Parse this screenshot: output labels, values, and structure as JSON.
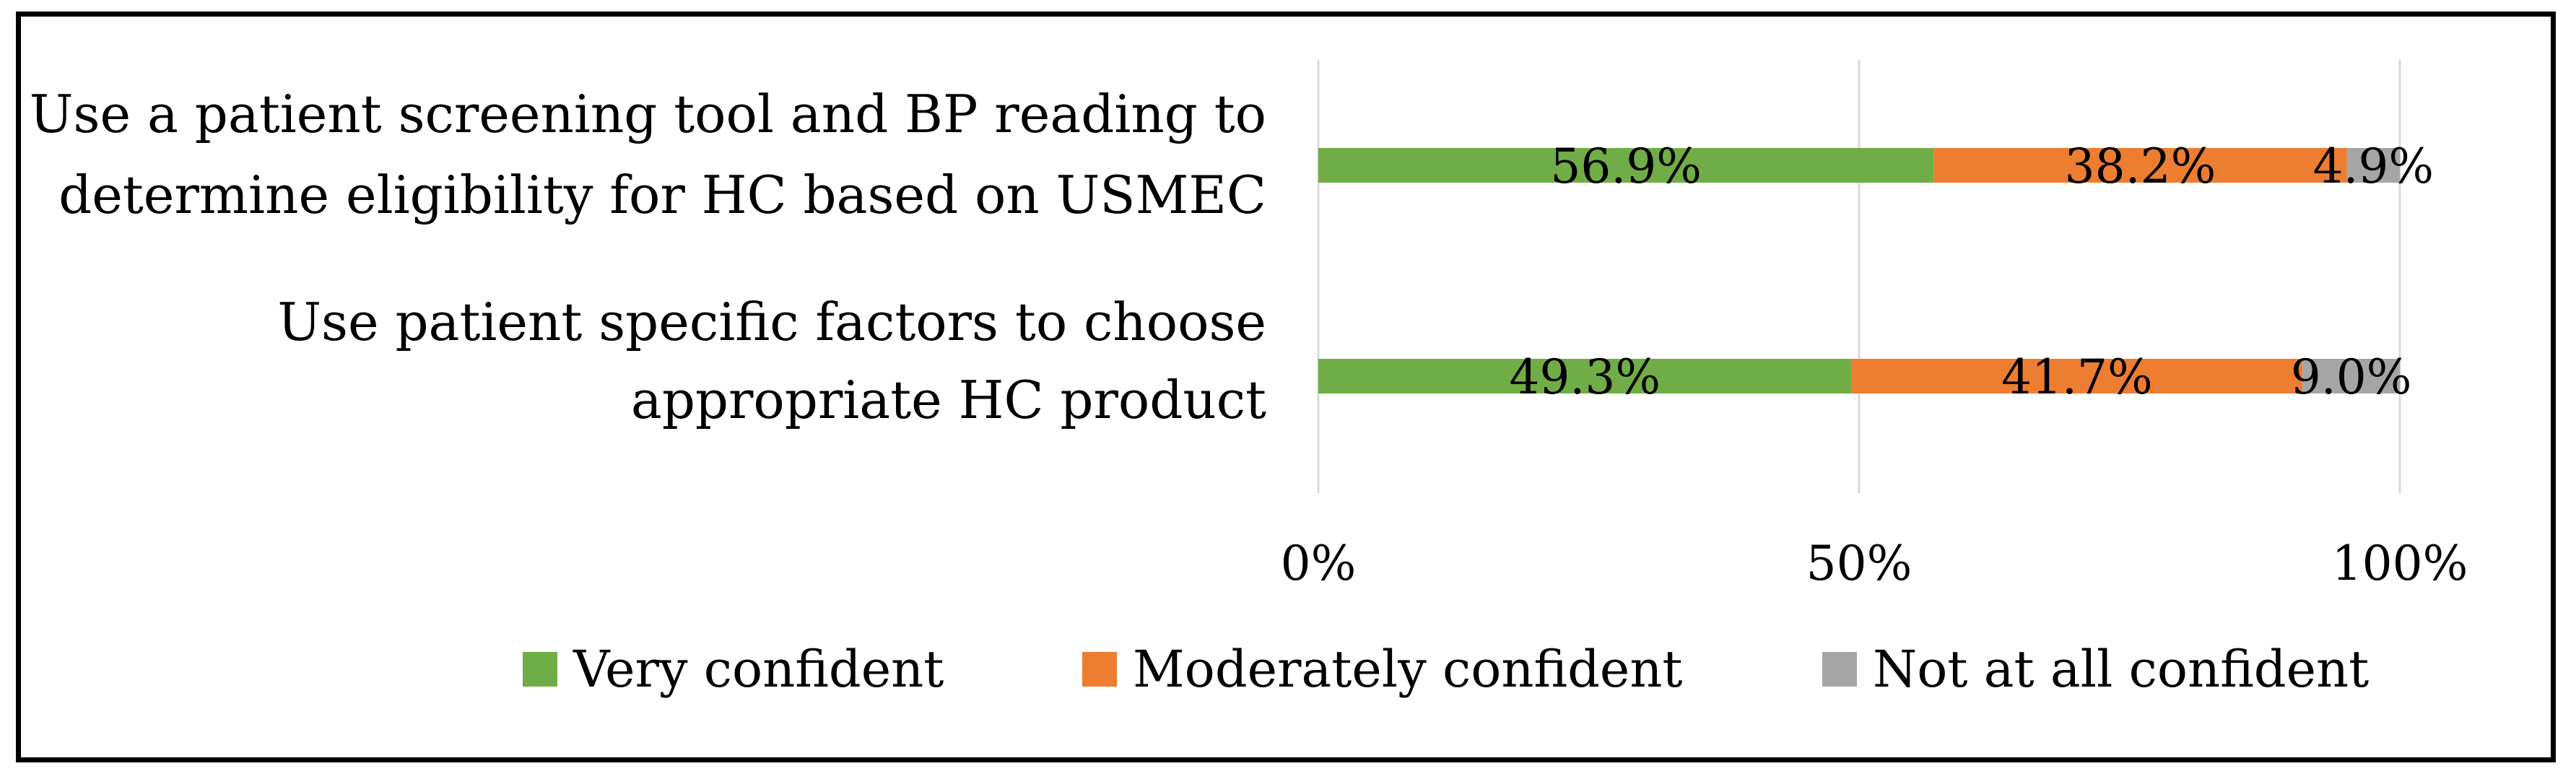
{
  "chart_data": {
    "type": "bar",
    "orientation": "horizontal",
    "stacked": "percent",
    "title": "",
    "xlabel": "",
    "ylabel": "",
    "xlim": [
      0,
      100
    ],
    "x_ticks": [
      "0%",
      "50%",
      "100%"
    ],
    "grid": "vertical",
    "legend_position": "bottom",
    "categories": [
      [
        "Use a patient screening tool and BP reading to",
        "determine eligibility for HC based on USMEC"
      ],
      [
        "Use patient specific factors to choose",
        "appropriate HC product"
      ]
    ],
    "series": [
      {
        "name": "Very confident",
        "color": "#70ad47",
        "values": [
          56.9,
          49.3
        ],
        "labels": [
          "56.9%",
          "49.3%"
        ]
      },
      {
        "name": "Moderately confident",
        "color": "#ed7d31",
        "values": [
          38.2,
          41.7
        ],
        "labels": [
          "38.2%",
          "41.7%"
        ]
      },
      {
        "name": "Not at all confident",
        "color": "#a5a5a5",
        "values": [
          4.9,
          9.0
        ],
        "labels": [
          "4.9%",
          "9.0%"
        ]
      }
    ]
  }
}
